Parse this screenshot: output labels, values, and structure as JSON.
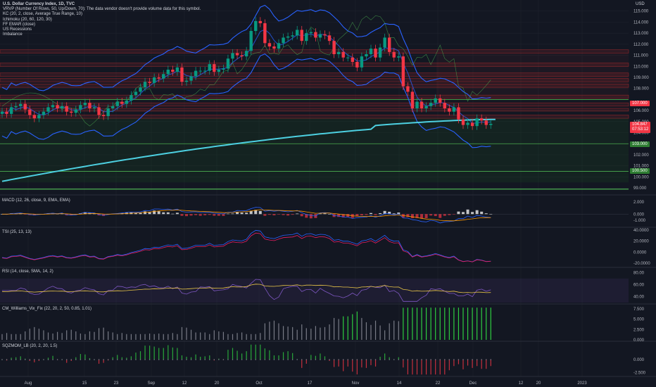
{
  "header": {
    "title": "U.S. Dollar Currency Index, 1D, TVC",
    "indicators": [
      "VRVP (Number Of Rows, 50, Up/Down, 70): The data vendor doesn't provide volume data for this symbol.",
      "KC (20, 2, close, Average True Range, 10)",
      "Ichimoku (20, 60, 120, 30)",
      "FF EMAR (close)",
      "US Recessions",
      "Imbalance"
    ],
    "currency": "USD"
  },
  "colors": {
    "background": "#131722",
    "up": "#26a69a",
    "up_candle": "#089981",
    "down": "#f23645",
    "keltner": "#2962ff",
    "ema": "#4dd0e1",
    "zone_red": "#d32f2f",
    "zone_green": "#4caf50",
    "macd": "#2962ff",
    "signal": "#ff9800",
    "rsi": "#7e57c2",
    "rsi_ma": "#e8c547",
    "vix_green": "#2ecc40",
    "vix_gray": "#787b86"
  },
  "price_axis": {
    "ticks": [
      "115.000",
      "114.000",
      "113.000",
      "112.000",
      "111.000",
      "110.000",
      "109.000",
      "108.000",
      "106.000",
      "105.000",
      "104.000",
      "102.000",
      "101.000",
      "100.000",
      "99.000"
    ],
    "last_price": "104.847",
    "countdown": "07:53:12",
    "level_107": "107.000",
    "level_103": "103.000",
    "level_100": "100.500"
  },
  "x_axis": {
    "labels": [
      "Aug",
      "15",
      "23",
      "Sep",
      "12",
      "20",
      "Oct",
      "17",
      "Nov",
      "14",
      "22",
      "Dec",
      "12",
      "20",
      "2023"
    ]
  },
  "panes": {
    "macd": {
      "label": "MACD (12, 26, close, 9, EMA, EMA)",
      "ticks": [
        "2.000",
        "0.000",
        "-1.000"
      ]
    },
    "tsi": {
      "label": "TSI (25, 13, 13)",
      "ticks": [
        "40.0000",
        "20.0000",
        "0.0000",
        "-20.0000"
      ]
    },
    "rsi": {
      "label": "RSI (14, close, SMA, 14, 2)",
      "ticks": [
        "80.00",
        "60.00",
        "40.00"
      ]
    },
    "vix": {
      "label": "CM_Williams_Vix_Fix (22, 20, 2, 50, 0.85, 1.01)",
      "ticks": [
        "7.500",
        "5.000",
        "2.500",
        "0.000"
      ]
    },
    "sqz": {
      "label": "SQZMOM_LB (20, 2, 20, 1.5)",
      "ticks": [
        "0.000",
        "-2.500"
      ]
    }
  },
  "chart_data": {
    "type": "candlestick",
    "title": "U.S. Dollar Currency Index, 1D, TVC",
    "ylim": [
      98.5,
      116
    ],
    "horizontal_levels": [
      100.5,
      103.0,
      107.0
    ],
    "last_price": 104.847,
    "closes": [
      105.9,
      105.7,
      106.3,
      106.4,
      106.6,
      106.1,
      105.6,
      105.3,
      105.6,
      105.9,
      106.3,
      106.5,
      106.2,
      106.4,
      105.9,
      105.8,
      106.1,
      106.5,
      106.7,
      106.2,
      106.3,
      105.6,
      105.5,
      106.2,
      106.4,
      106.8,
      106.6,
      106.9,
      107.4,
      107.7,
      108.1,
      108.6,
      108.5,
      109.0,
      108.9,
      109.3,
      109.7,
      109.5,
      109.9,
      108.6,
      108.7,
      109.1,
      109.6,
      109.6,
      109.6,
      110.2,
      109.5,
      109.7,
      109.8,
      110.7,
      111.2,
      111.0,
      110.9,
      111.4,
      113.2,
      114.1,
      113.9,
      112.1,
      111.8,
      111.6,
      112.1,
      112.6,
      112.7,
      112.8,
      113.3,
      112.3,
      113.0,
      113.1,
      112.6,
      112.9,
      112.8,
      112.3,
      111.1,
      111.3,
      110.8,
      110.8,
      110.4,
      109.9,
      110.9,
      111.1,
      111.6,
      110.8,
      111.7,
      112.6,
      111.3,
      110.8,
      110.9,
      108.2,
      107.7,
      106.2,
      106.8,
      106.2,
      106.4,
      106.7,
      107.1,
      106.7,
      106.2,
      105.9,
      106.3,
      105.2,
      104.7,
      104.9,
      104.6,
      105.3,
      105.1,
      104.7,
      104.8
    ],
    "macd_range": [
      -1.8,
      2.2
    ],
    "tsi_range": [
      -25,
      40
    ],
    "rsi_range": [
      30,
      85
    ],
    "vix_range": [
      0,
      8
    ],
    "sqz_range": [
      -3,
      3
    ]
  }
}
